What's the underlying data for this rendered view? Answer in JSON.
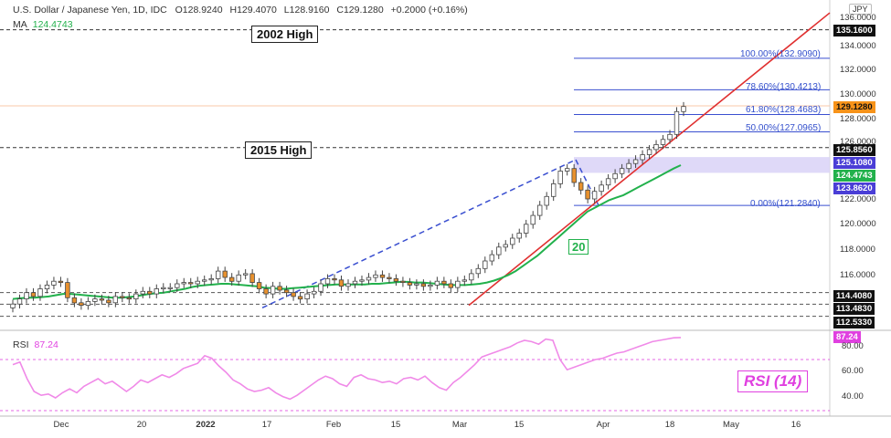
{
  "header": {
    "symbol": "U.S. Dollar / Japanese Yen, 1D, IDC",
    "open": "O128.9240",
    "high": "H129.4070",
    "low": "L128.9160",
    "close": "C129.1280",
    "change": "+0.2000 (+0.16%)",
    "ma_label": "MA",
    "ma_value": "124.4743",
    "rsi_label": "RSI",
    "rsi_value": "87.24",
    "currency": "JPY"
  },
  "annotations": {
    "high_2002": "2002 High",
    "high_2015": "2015 High",
    "ma_period": "20",
    "rsi_box": "RSI (14)"
  },
  "fib_labels": [
    "100.00%(132.9090)",
    "78.60%(130.4213)",
    "61.80%(128.4683)",
    "50.00%(127.0965)",
    "0.00%(121.2840)"
  ],
  "price_axis": {
    "ticks": [
      "136.0000",
      "134.0000",
      "132.0000",
      "130.0000",
      "128.0000",
      "126.0000",
      "122.0000",
      "120.0000",
      "118.0000",
      "116.0000"
    ],
    "badges": [
      {
        "text": "135.1600",
        "bg": "#111111",
        "fg": "#ffffff"
      },
      {
        "text": "129.1280",
        "bg": "#f7931a",
        "fg": "#111111"
      },
      {
        "text": "125.8560",
        "bg": "#111111",
        "fg": "#ffffff"
      },
      {
        "text": "125.1080",
        "bg": "#4a3ed6",
        "fg": "#ffffff"
      },
      {
        "text": "124.4743",
        "bg": "#22b14c",
        "fg": "#ffffff"
      },
      {
        "text": "123.8620",
        "bg": "#4a3ed6",
        "fg": "#ffffff"
      },
      {
        "text": "114.4080",
        "bg": "#111111",
        "fg": "#ffffff"
      },
      {
        "text": "113.4830",
        "bg": "#111111",
        "fg": "#ffffff"
      },
      {
        "text": "112.5330",
        "bg": "#111111",
        "fg": "#ffffff"
      }
    ]
  },
  "rsi_axis": {
    "ticks": [
      "80.00",
      "60.00",
      "40.00"
    ],
    "badge": {
      "text": "87.24",
      "bg": "#e040e0",
      "fg": "#ffffff"
    }
  },
  "x_axis": {
    "ticks": [
      {
        "text": "Dec",
        "bold": false
      },
      {
        "text": "20",
        "bold": false
      },
      {
        "text": "2022",
        "bold": true
      },
      {
        "text": "17",
        "bold": false
      },
      {
        "text": "Feb",
        "bold": false
      },
      {
        "text": "15",
        "bold": false
      },
      {
        "text": "Mar",
        "bold": false
      },
      {
        "text": "15",
        "bold": false
      },
      {
        "text": "Apr",
        "bold": false
      },
      {
        "text": "18",
        "bold": false
      },
      {
        "text": "May",
        "bold": false
      },
      {
        "text": "16",
        "bold": false
      }
    ]
  },
  "chart_data": {
    "type": "candlestick",
    "symbol": "USD/JPY",
    "timeframe": "1D",
    "price_range": [
      112,
      136.5
    ],
    "levels": {
      "high_2002": 135.16,
      "high_2015": 125.856,
      "support_1": 114.408,
      "support_2": 113.483,
      "support_3": 112.533
    },
    "fibonacci": {
      "0.0": 121.284,
      "0.5": 127.0965,
      "0.618": 128.4683,
      "0.786": 130.4213,
      "1.0": 132.909
    },
    "zone": [
      123.862,
      125.108
    ],
    "close_series": [
      113.5,
      113.9,
      114.4,
      114.1,
      114.7,
      115.0,
      115.3,
      115.2,
      114.0,
      113.6,
      113.4,
      113.7,
      113.9,
      113.8,
      113.6,
      114.1,
      114.0,
      113.9,
      114.3,
      114.5,
      114.3,
      114.7,
      114.8,
      114.8,
      115.1,
      115.2,
      115.1,
      115.3,
      115.4,
      115.5,
      116.1,
      115.6,
      115.3,
      115.8,
      115.9,
      115.2,
      114.7,
      114.3,
      114.9,
      114.6,
      114.4,
      114.1,
      113.9,
      114.3,
      114.5,
      115.1,
      115.5,
      115.4,
      114.9,
      115.1,
      115.3,
      115.4,
      115.6,
      115.8,
      115.6,
      115.5,
      115.3,
      115.2,
      115.0,
      115.1,
      114.9,
      115.0,
      115.3,
      115.1,
      114.8,
      115.3,
      115.4,
      115.9,
      116.3,
      116.9,
      117.4,
      118.0,
      118.2,
      118.7,
      119.1,
      119.8,
      120.5,
      121.3,
      122.0,
      123.0,
      124.0,
      124.2,
      123.1,
      122.5,
      121.8,
      122.4,
      122.9,
      123.4,
      123.8,
      124.2,
      124.6,
      124.9,
      125.3,
      125.7,
      126.1,
      126.5,
      126.9,
      128.7,
      129.1
    ],
    "ma20_series": [
      113.9,
      113.95,
      114.0,
      114.0,
      114.05,
      114.1,
      114.2,
      114.3,
      114.3,
      114.25,
      114.2,
      114.15,
      114.1,
      114.05,
      114.0,
      114.0,
      114.05,
      114.1,
      114.2,
      114.3,
      114.35,
      114.4,
      114.5,
      114.6,
      114.7,
      114.85,
      114.95,
      115.0,
      115.05,
      115.1,
      115.1,
      115.05,
      115.0,
      114.95,
      114.9,
      114.8,
      114.75,
      114.7,
      114.7,
      114.75,
      114.8,
      114.85,
      114.9,
      114.95,
      115.0,
      115.05,
      115.05,
      115.05,
      115.05,
      115.05,
      115.1,
      115.1,
      115.15,
      115.2,
      115.25,
      115.25,
      115.2,
      115.2,
      115.15,
      115.1,
      115.05,
      115.0,
      115.0,
      115.0,
      115.05,
      115.1,
      115.2,
      115.35,
      115.55,
      115.8,
      116.1,
      116.5,
      116.9,
      117.3,
      117.8,
      118.3,
      118.8,
      119.3,
      119.8,
      120.3,
      120.8,
      121.1,
      121.4,
      121.7,
      121.9,
      122.1,
      122.4,
      122.7,
      123.0,
      123.3,
      123.6,
      123.9,
      124.2,
      124.47
    ],
    "rsi_series": [
      66,
      68,
      55,
      45,
      42,
      43,
      40,
      44,
      47,
      44,
      49,
      52,
      55,
      51,
      53,
      49,
      45,
      49,
      54,
      52,
      55,
      58,
      56,
      59,
      63,
      65,
      67,
      73,
      71,
      65,
      60,
      54,
      51,
      47,
      45,
      46,
      48,
      44,
      41,
      39,
      42,
      46,
      50,
      54,
      57,
      55,
      51,
      49,
      56,
      58,
      55,
      54,
      52,
      53,
      51,
      55,
      56,
      54,
      57,
      52,
      48,
      46,
      52,
      56,
      61,
      66,
      72,
      74,
      76,
      78,
      80,
      83,
      85,
      84,
      82,
      86,
      85,
      70,
      62,
      64,
      66,
      68,
      70,
      71,
      73,
      75,
      76,
      78,
      80,
      82,
      84,
      85,
      86,
      87,
      87.24
    ],
    "rsi_levels": [
      70,
      30
    ]
  }
}
